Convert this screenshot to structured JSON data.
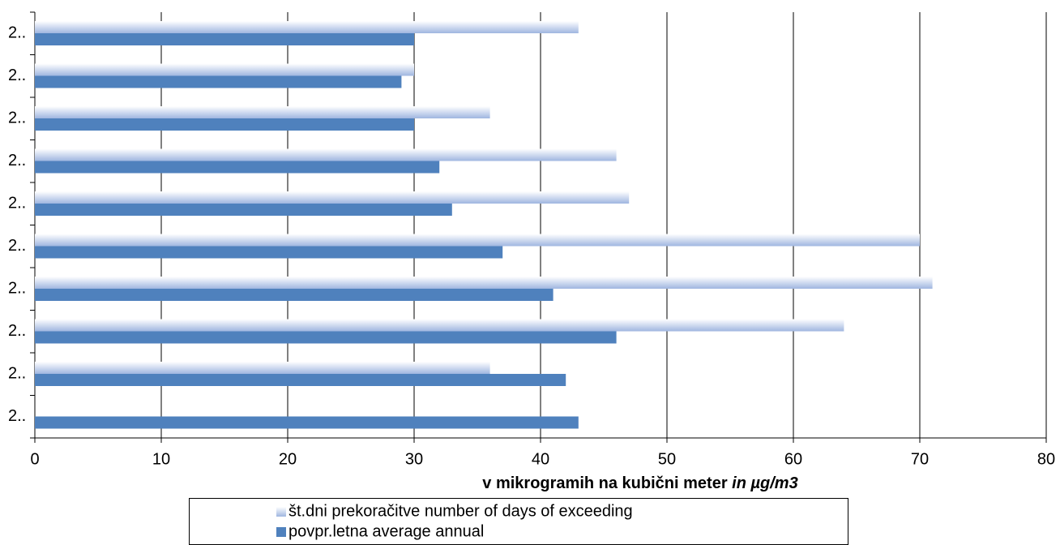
{
  "chart_data": {
    "type": "barh",
    "xlabel": [
      "v mikrogramih na kubični meter",
      "in µg/m3"
    ],
    "categories": [
      "2..",
      "2..",
      "2..",
      "2..",
      "2..",
      "2..",
      "2..",
      "2..",
      "2..",
      "2.."
    ],
    "series": [
      {
        "name": "št.dni prekoračitve number of days of exceeding",
        "color": "#9fb6e0",
        "values": [
          43,
          30,
          36,
          46,
          47,
          70,
          71,
          64,
          36,
          null
        ]
      },
      {
        "name": "povpr.letna average annual",
        "color": "#4f81bd",
        "values": [
          30,
          29,
          30,
          32,
          33,
          37,
          41,
          46,
          42,
          43
        ]
      }
    ],
    "xlim": [
      0,
      80
    ],
    "xticks": [
      0,
      10,
      20,
      30,
      40,
      50,
      60,
      70,
      80
    ],
    "grid": true
  }
}
